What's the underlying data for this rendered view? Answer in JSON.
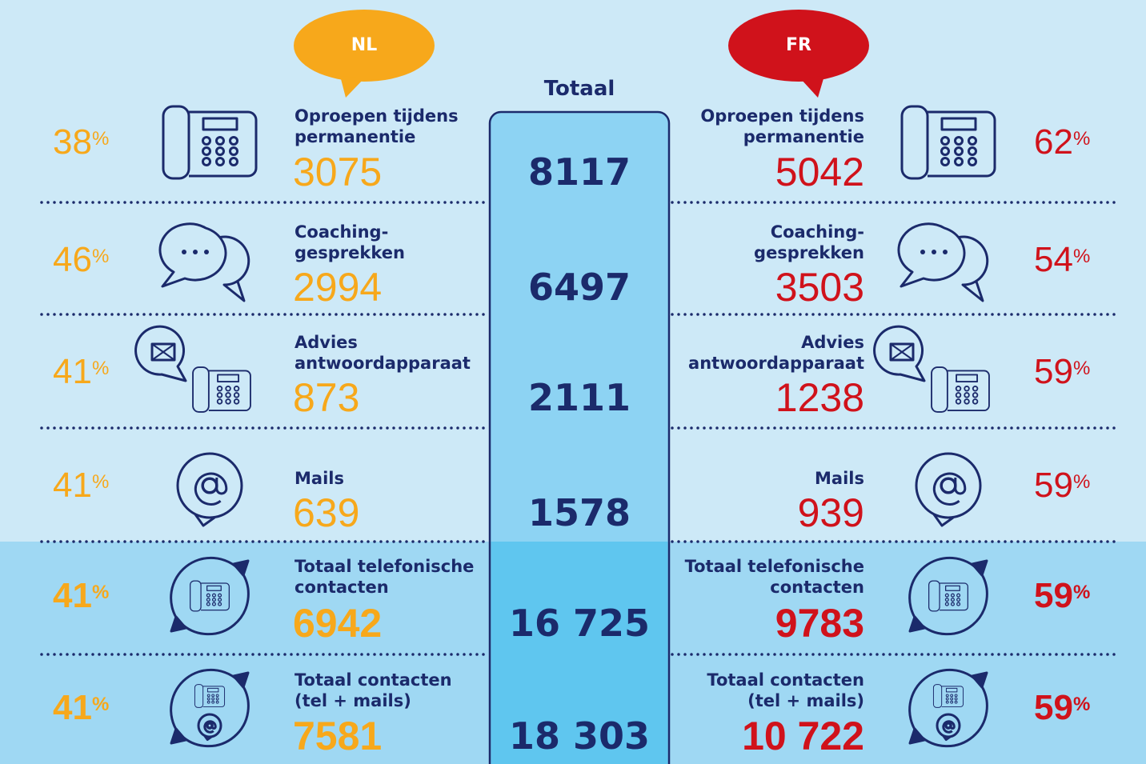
{
  "header": {
    "nl": "NL",
    "fr": "FR",
    "total": "Totaal"
  },
  "rows": [
    {
      "nl_pct": "38%",
      "nl_label": "Oproepen tijdens permanentie",
      "nl_value": "3075",
      "total": "8117",
      "fr_label": "Oproepen tijdens permanentie",
      "fr_value": "5042",
      "fr_pct": "62%"
    },
    {
      "nl_pct": "46%",
      "nl_label": "Coaching-gesprekken",
      "nl_value": "2994",
      "total": "6497",
      "fr_label": "Coaching-gesprekken",
      "fr_value": "3503",
      "fr_pct": "54%"
    },
    {
      "nl_pct": "41%",
      "nl_label": "Advies antwoordapparaat",
      "nl_value": "873",
      "total": "2111",
      "fr_label": "Advies antwoordapparaat",
      "fr_value": "1238",
      "fr_pct": "59%"
    },
    {
      "nl_pct": "41%",
      "nl_label": "Mails",
      "nl_value": "639",
      "total": "1578",
      "fr_label": "Mails",
      "fr_value": "939",
      "fr_pct": "59%"
    },
    {
      "nl_pct": "41%",
      "nl_label": "Totaal telefonische contacten",
      "nl_value": "6942",
      "total": "16 725",
      "fr_label": "Totaal telefonische contacten",
      "fr_value": "9783",
      "fr_pct": "59%"
    },
    {
      "nl_pct": "41%",
      "nl_label": "Totaal contacten (tel + mails)",
      "nl_value": "7581",
      "total": "18 303",
      "fr_label": "Totaal contacten (tel + mails)",
      "fr_value": "10 722",
      "fr_pct": "59%"
    }
  ]
}
